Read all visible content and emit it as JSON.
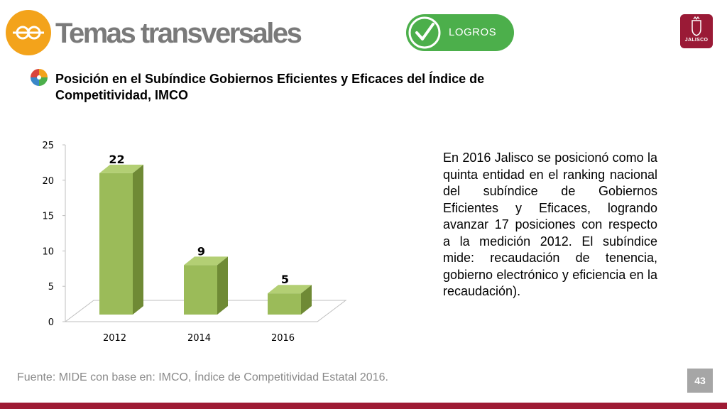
{
  "header": {
    "title": "Temas transversales",
    "badge_icon": "link-chain-icon",
    "logros_label": "LOGROS",
    "logros_icon": "checkmark-icon",
    "logo_text": "JALISCO"
  },
  "chart_data": {
    "type": "bar",
    "title": "Posición en el Subíndice Gobiernos Eficientes y Eficaces del Índice de Competitividad, IMCO",
    "categories": [
      "2012",
      "2014",
      "2016"
    ],
    "values": [
      22,
      9,
      5
    ],
    "data_labels": [
      "22",
      "9",
      "5"
    ],
    "ylim": [
      0,
      25
    ],
    "yticks": [
      "0",
      "5",
      "10",
      "15",
      "20",
      "25"
    ],
    "xlabel": "",
    "ylabel": "",
    "grid": false,
    "legend": false,
    "bar_color": "#9bbb59",
    "style": "3d"
  },
  "body_text": "En 2016 Jalisco se posicionó como la quinta entidad en el ranking nacional del subíndice de Gobiernos Eficientes y Eficaces, logrando avanzar 17 posiciones con respecto a la medición 2012. El subíndice mide: recaudación de tenencia, gobierno electrónico y eficiencia en la recaudación).",
  "footer": {
    "source": "Fuente: MIDE con base en: IMCO, Índice de Competitividad Estatal 2016.",
    "page_number": "43"
  },
  "colors": {
    "badge": "#f3a31b",
    "logros": "#4caf4b",
    "brand": "#9e1b34",
    "title_gray": "#7a7a7a"
  }
}
